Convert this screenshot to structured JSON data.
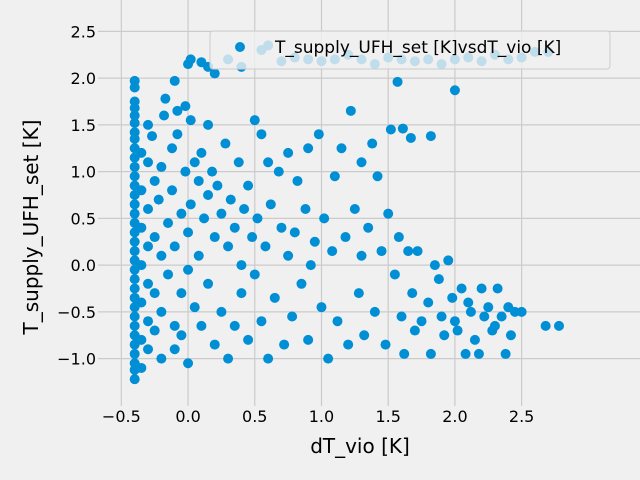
{
  "chart_data": {
    "type": "scatter",
    "xlabel": "dT_vio [K]",
    "ylabel": "T_supply_UFH_set [K]",
    "xlim": [
      -0.6,
      2.9
    ],
    "ylim": [
      -1.4,
      2.6
    ],
    "xticks": [
      -0.5,
      0.0,
      0.5,
      1.0,
      1.5,
      2.0,
      2.5
    ],
    "xtick_labels": [
      "−0.5",
      "0.0",
      "0.5",
      "1.0",
      "1.5",
      "2.0",
      "2.5"
    ],
    "yticks": [
      -1.0,
      -0.5,
      0.0,
      0.5,
      1.0,
      1.5,
      2.0,
      2.5
    ],
    "ytick_labels": [
      "−1.0",
      "−0.5",
      "0.0",
      "0.5",
      "1.0",
      "1.5",
      "2.0",
      "2.5"
    ],
    "grid": true,
    "legend_position": "top-right",
    "series": [
      {
        "name": "T_supply_UFH_set [K]vsdT_vio [K]",
        "color": "#008fd5",
        "points": [
          [
            -0.4,
            1.97
          ],
          [
            -0.4,
            1.9
          ],
          [
            -0.4,
            1.75
          ],
          [
            -0.4,
            1.68
          ],
          [
            -0.4,
            1.6
          ],
          [
            -0.4,
            1.52
          ],
          [
            -0.4,
            1.42
          ],
          [
            -0.4,
            1.35
          ],
          [
            -0.4,
            1.25
          ],
          [
            -0.4,
            1.15
          ],
          [
            -0.4,
            1.05
          ],
          [
            -0.4,
            0.95
          ],
          [
            -0.4,
            0.85
          ],
          [
            -0.4,
            0.75
          ],
          [
            -0.4,
            0.65
          ],
          [
            -0.4,
            0.55
          ],
          [
            -0.4,
            0.45
          ],
          [
            -0.4,
            0.35
          ],
          [
            -0.4,
            0.25
          ],
          [
            -0.4,
            0.15
          ],
          [
            -0.4,
            0.05
          ],
          [
            -0.4,
            -0.05
          ],
          [
            -0.4,
            -0.15
          ],
          [
            -0.4,
            -0.25
          ],
          [
            -0.4,
            -0.35
          ],
          [
            -0.4,
            -0.45
          ],
          [
            -0.4,
            -0.55
          ],
          [
            -0.4,
            -0.65
          ],
          [
            -0.4,
            -0.75
          ],
          [
            -0.4,
            -0.85
          ],
          [
            -0.4,
            -0.95
          ],
          [
            -0.4,
            -1.05
          ],
          [
            -0.4,
            -1.12
          ],
          [
            -0.4,
            -1.22
          ],
          [
            -0.35,
            1.2
          ],
          [
            -0.35,
            0.8
          ],
          [
            -0.35,
            0.4
          ],
          [
            -0.35,
            0.0
          ],
          [
            -0.35,
            -0.4
          ],
          [
            -0.35,
            -0.8
          ],
          [
            -0.35,
            -1.1
          ],
          [
            -0.3,
            1.5
          ],
          [
            -0.3,
            1.1
          ],
          [
            -0.3,
            0.6
          ],
          [
            -0.3,
            0.2
          ],
          [
            -0.3,
            -0.2
          ],
          [
            -0.3,
            -0.6
          ],
          [
            -0.3,
            -0.9
          ],
          [
            -0.27,
            1.38
          ],
          [
            -0.25,
            0.9
          ],
          [
            -0.25,
            0.3
          ],
          [
            -0.25,
            -0.3
          ],
          [
            -0.25,
            -0.7
          ],
          [
            -0.22,
            0.7
          ],
          [
            -0.2,
            1.05
          ],
          [
            -0.2,
            0.1
          ],
          [
            -0.2,
            -0.5
          ],
          [
            -0.2,
            -1.0
          ],
          [
            -0.18,
            1.6
          ],
          [
            -0.17,
            1.78
          ],
          [
            -0.15,
            0.45
          ],
          [
            -0.15,
            -0.1
          ],
          [
            -0.12,
            1.25
          ],
          [
            -0.12,
            0.8
          ],
          [
            -0.1,
            0.2
          ],
          [
            -0.1,
            -0.65
          ],
          [
            -0.1,
            -0.9
          ],
          [
            -0.08,
            1.65
          ],
          [
            -0.08,
            1.4
          ],
          [
            -0.05,
            0.55
          ],
          [
            -0.05,
            -0.3
          ],
          [
            -0.05,
            -0.75
          ],
          [
            -0.02,
            1.7
          ],
          [
            -0.02,
            1.0
          ],
          [
            0.0,
            0.35
          ],
          [
            0.0,
            -0.05
          ],
          [
            0.0,
            -1.05
          ],
          [
            0.02,
            1.55
          ],
          [
            0.02,
            0.65
          ],
          [
            0.05,
            1.1
          ],
          [
            0.05,
            -0.45
          ],
          [
            0.08,
            0.9
          ],
          [
            0.08,
            0.1
          ],
          [
            0.1,
            1.2
          ],
          [
            0.1,
            -0.65
          ],
          [
            0.12,
            0.5
          ],
          [
            0.15,
            1.5
          ],
          [
            0.15,
            0.75
          ],
          [
            0.15,
            -0.2
          ],
          [
            0.18,
            1.0
          ],
          [
            0.2,
            0.3
          ],
          [
            0.2,
            -0.85
          ],
          [
            0.22,
            0.85
          ],
          [
            0.25,
            0.55
          ],
          [
            0.25,
            -0.5
          ],
          [
            0.28,
            1.3
          ],
          [
            0.3,
            0.2
          ],
          [
            0.3,
            -1.0
          ],
          [
            0.32,
            0.7
          ],
          [
            0.35,
            0.4
          ],
          [
            0.35,
            -0.65
          ],
          [
            0.38,
            1.1
          ],
          [
            0.4,
            0.0
          ],
          [
            0.4,
            -0.3
          ],
          [
            0.42,
            0.6
          ],
          [
            0.45,
            0.85
          ],
          [
            0.45,
            -0.8
          ],
          [
            0.48,
            0.3
          ],
          [
            0.5,
            1.55
          ],
          [
            0.5,
            -0.1
          ],
          [
            0.52,
            0.5
          ],
          [
            0.55,
            1.4
          ],
          [
            0.55,
            -0.6
          ],
          [
            0.58,
            0.2
          ],
          [
            0.6,
            1.1
          ],
          [
            0.6,
            -1.0
          ],
          [
            0.62,
            0.65
          ],
          [
            0.65,
            -0.35
          ],
          [
            0.68,
            1.0
          ],
          [
            0.7,
            0.4
          ],
          [
            0.72,
            -0.85
          ],
          [
            0.75,
            1.2
          ],
          [
            0.75,
            0.1
          ],
          [
            0.78,
            -0.55
          ],
          [
            0.8,
            0.35
          ],
          [
            0.82,
            0.9
          ],
          [
            0.85,
            -0.2
          ],
          [
            0.88,
            0.6
          ],
          [
            0.9,
            1.25
          ],
          [
            0.9,
            -0.8
          ],
          [
            0.92,
            0.0
          ],
          [
            0.95,
            0.25
          ],
          [
            0.98,
            1.4
          ],
          [
            1.0,
            -0.45
          ],
          [
            1.02,
            0.5
          ],
          [
            1.05,
            -1.0
          ],
          [
            1.08,
            0.15
          ],
          [
            1.1,
            0.95
          ],
          [
            1.12,
            -0.6
          ],
          [
            1.15,
            1.25
          ],
          [
            1.18,
            0.3
          ],
          [
            1.2,
            -0.85
          ],
          [
            1.22,
            1.65
          ],
          [
            1.25,
            0.6
          ],
          [
            1.28,
            -0.3
          ],
          [
            1.3,
            1.1
          ],
          [
            1.3,
            0.1
          ],
          [
            1.32,
            -0.75
          ],
          [
            1.35,
            0.4
          ],
          [
            1.38,
            1.3
          ],
          [
            1.4,
            -0.5
          ],
          [
            1.42,
            0.95
          ],
          [
            1.45,
            0.15
          ],
          [
            1.48,
            -0.85
          ],
          [
            1.5,
            0.55
          ],
          [
            1.52,
            1.45
          ],
          [
            1.55,
            -0.1
          ],
          [
            1.58,
            0.3
          ],
          [
            1.6,
            -0.55
          ],
          [
            1.62,
            -0.95
          ],
          [
            1.65,
            0.15
          ],
          [
            1.68,
            -0.3
          ],
          [
            1.7,
            -0.7
          ],
          [
            1.72,
            0.15
          ],
          [
            1.75,
            -0.6
          ],
          [
            1.8,
            -0.4
          ],
          [
            1.82,
            -0.95
          ],
          [
            1.85,
            0.0
          ],
          [
            1.88,
            -0.15
          ],
          [
            1.9,
            -0.55
          ],
          [
            1.92,
            -0.75
          ],
          [
            1.95,
            0.05
          ],
          [
            1.98,
            -0.35
          ],
          [
            2.0,
            -0.6
          ],
          [
            2.02,
            -0.7
          ],
          [
            2.05,
            -0.25
          ],
          [
            2.08,
            -0.95
          ],
          [
            2.1,
            -0.4
          ],
          [
            2.12,
            -0.5
          ],
          [
            2.15,
            -0.8
          ],
          [
            2.18,
            -0.95
          ],
          [
            2.2,
            -0.25
          ],
          [
            2.22,
            -0.55
          ],
          [
            2.25,
            -0.45
          ],
          [
            2.28,
            -0.7
          ],
          [
            2.3,
            -0.65
          ],
          [
            2.32,
            -0.25
          ],
          [
            2.35,
            -0.55
          ],
          [
            2.38,
            -0.95
          ],
          [
            2.4,
            -0.45
          ],
          [
            2.42,
            -0.75
          ],
          [
            2.45,
            -0.5
          ],
          [
            2.5,
            -0.5
          ],
          [
            2.68,
            -0.65
          ],
          [
            2.78,
            -0.65
          ],
          [
            1.57,
            1.96
          ],
          [
            1.61,
            1.46
          ],
          [
            1.67,
            1.36
          ],
          [
            1.82,
            1.38
          ],
          [
            2.0,
            1.87
          ],
          [
            -0.1,
            1.97
          ],
          [
            0.0,
            2.15
          ],
          [
            0.02,
            2.2
          ],
          [
            0.1,
            2.17
          ],
          [
            0.15,
            2.12
          ],
          [
            0.2,
            2.05
          ],
          [
            0.3,
            2.2
          ],
          [
            0.4,
            2.12
          ],
          [
            0.55,
            2.3
          ],
          [
            0.6,
            2.35
          ],
          [
            0.7,
            2.18
          ],
          [
            0.8,
            2.22
          ],
          [
            0.9,
            2.2
          ],
          [
            1.0,
            2.18
          ],
          [
            1.1,
            2.2
          ],
          [
            1.2,
            2.25
          ],
          [
            1.3,
            2.2
          ],
          [
            1.4,
            2.15
          ],
          [
            1.5,
            2.22
          ],
          [
            1.6,
            2.2
          ],
          [
            1.7,
            2.18
          ],
          [
            1.8,
            2.2
          ],
          [
            1.9,
            2.15
          ],
          [
            2.0,
            2.2
          ],
          [
            2.1,
            2.22
          ],
          [
            2.2,
            2.18
          ],
          [
            2.3,
            2.25
          ],
          [
            2.4,
            2.2
          ],
          [
            2.5,
            2.22
          ],
          [
            2.6,
            2.28
          ],
          [
            2.7,
            2.28
          ]
        ]
      }
    ]
  }
}
